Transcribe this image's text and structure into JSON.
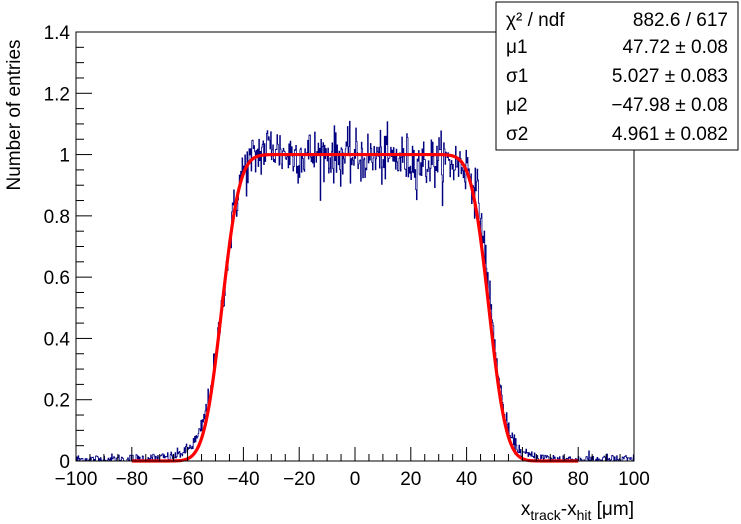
{
  "chart_data": {
    "type": "line",
    "title": "",
    "xlabel": {
      "base": "x",
      "sub1": "track",
      "mid": "-x",
      "sub2": "hit",
      "unit": "  [μm]"
    },
    "ylabel": "Number of entries",
    "xlim": [
      -100,
      100
    ],
    "ylim": [
      0,
      1.4
    ],
    "x_ticks": [
      -100,
      -80,
      -60,
      -40,
      -20,
      0,
      20,
      40,
      60,
      80,
      100
    ],
    "x_tick_labels": [
      "−100",
      "−80",
      "−60",
      "−40",
      "−20",
      "0",
      "20",
      "40",
      "60",
      "80",
      "100"
    ],
    "y_ticks": [
      0,
      0.2,
      0.4,
      0.6,
      0.8,
      1,
      1.2,
      1.4
    ],
    "y_tick_labels": [
      "0",
      "0.2",
      "0.4",
      "0.6",
      "0.8",
      "1",
      "1.2",
      "1.4"
    ],
    "grid": false,
    "series": [
      {
        "kind": "histogram",
        "color": "#000080",
        "x": [
          -100,
          -80,
          -70,
          -65,
          -60,
          -56,
          -54,
          -52,
          -50,
          -48,
          -46,
          -44,
          -42,
          -40,
          -35,
          -30,
          -25,
          -20,
          -10,
          0,
          10,
          20,
          25,
          30,
          35,
          38,
          40,
          42,
          44,
          46,
          48,
          50,
          52,
          54,
          56,
          60,
          65,
          70,
          80,
          100
        ],
        "values": [
          0.005,
          0.006,
          0.01,
          0.015,
          0.035,
          0.08,
          0.14,
          0.22,
          0.33,
          0.48,
          0.64,
          0.78,
          0.88,
          0.95,
          1.0,
          1.03,
          1.0,
          1.0,
          1.0,
          0.99,
          0.99,
          0.98,
          0.97,
          0.98,
          0.97,
          0.97,
          0.96,
          0.93,
          0.86,
          0.73,
          0.56,
          0.38,
          0.24,
          0.13,
          0.07,
          0.025,
          0.012,
          0.008,
          0.005,
          0.004
        ]
      },
      {
        "kind": "fit",
        "color": "#ff0000",
        "formula": "0.5*(erf((x+mu1)/(sqrt2*sigma1)) - erf((x+mu2)/(sqrt2*sigma2)))",
        "params": {
          "mu1": 47.72,
          "sigma1": 5.027,
          "mu2": -47.98,
          "sigma2": 4.961
        }
      }
    ],
    "stats_box": {
      "placement": "top-right",
      "rows": [
        {
          "label": "χ² / ndf",
          "value": "882.6 / 617"
        },
        {
          "label": "μ1",
          "value": "47.72 ± 0.08"
        },
        {
          "label": "σ1",
          "value": "5.027 ± 0.083"
        },
        {
          "label": "μ2",
          "value": "−47.98 ± 0.08"
        },
        {
          "label": "σ2",
          "value": "4.961 ± 0.082"
        }
      ]
    }
  }
}
